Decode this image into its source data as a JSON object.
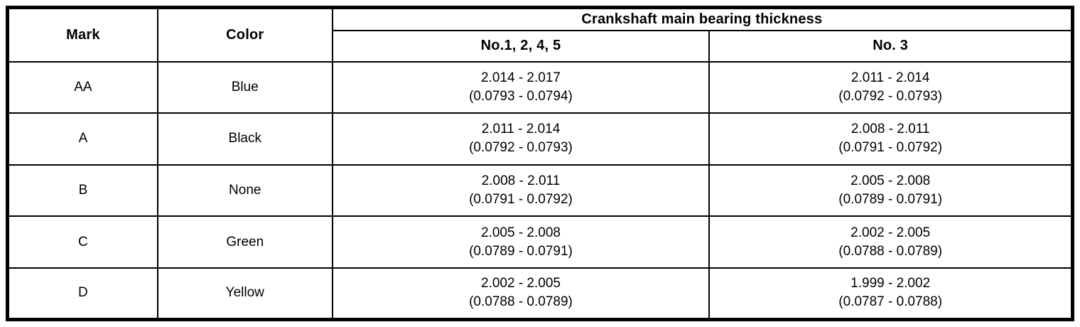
{
  "table": {
    "header": {
      "mark": "Mark",
      "color": "Color",
      "group_title": "Crankshaft main bearing thickness",
      "col_no1245": "No.1, 2, 4, 5",
      "col_no3": "No. 3"
    },
    "rows": [
      {
        "mark": "AA",
        "color": "Blue",
        "no1245_mm": "2.014 - 2.017",
        "no1245_in": "(0.0793 - 0.0794)",
        "no3_mm": "2.011 - 2.014",
        "no3_in": "(0.0792 - 0.0793)"
      },
      {
        "mark": "A",
        "color": "Black",
        "no1245_mm": "2.011 - 2.014",
        "no1245_in": "(0.0792 - 0.0793)",
        "no3_mm": "2.008 - 2.011",
        "no3_in": "(0.0791 - 0.0792)"
      },
      {
        "mark": "B",
        "color": "None",
        "no1245_mm": "2.008 - 2.011",
        "no1245_in": "(0.0791 - 0.0792)",
        "no3_mm": "2.005 - 2.008",
        "no3_in": "(0.0789 - 0.0791)"
      },
      {
        "mark": "C",
        "color": "Green",
        "no1245_mm": "2.005 - 2.008",
        "no1245_in": "(0.0789 - 0.0791)",
        "no3_mm": "2.002 - 2.005",
        "no3_in": "(0.0788 - 0.0789)"
      },
      {
        "mark": "D",
        "color": "Yellow",
        "no1245_mm": "2.002 - 2.005",
        "no1245_in": "(0.0788 - 0.0789)",
        "no3_mm": "1.999 - 2.002",
        "no3_in": "(0.0787 - 0.0788)"
      }
    ],
    "colors": {
      "border": "#000000",
      "background": "#ffffff",
      "text": "#000000"
    }
  }
}
